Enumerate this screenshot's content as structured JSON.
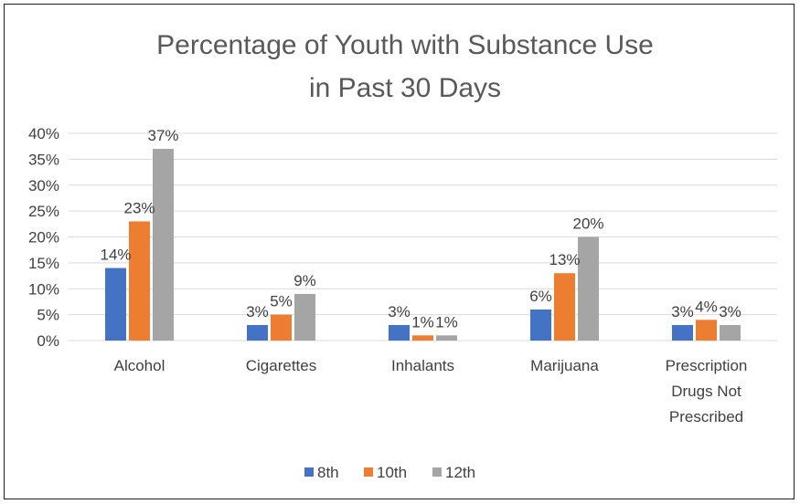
{
  "chart_data": {
    "type": "bar",
    "title_lines": [
      "Percentage of Youth with Substance Use",
      "in Past 30 Days"
    ],
    "categories": [
      [
        "Alcohol"
      ],
      [
        "Cigarettes"
      ],
      [
        "Inhalants"
      ],
      [
        "Marijuana"
      ],
      [
        "Prescription",
        "Drugs Not",
        "Prescribed"
      ]
    ],
    "series": [
      {
        "name": "8th",
        "color": "#4472c4",
        "values": [
          14,
          3,
          3,
          6,
          3
        ],
        "labels": [
          "14%",
          "3%",
          "3%",
          "6%",
          "3%"
        ]
      },
      {
        "name": "10th",
        "color": "#ed7d31",
        "values": [
          23,
          5,
          1,
          13,
          4
        ],
        "labels": [
          "23%",
          "5%",
          "1%",
          "13%",
          "4%"
        ]
      },
      {
        "name": "12th",
        "color": "#a5a5a5",
        "values": [
          37,
          9,
          1,
          20,
          3
        ],
        "labels": [
          "37%",
          "9%",
          "1%",
          "20%",
          "3%"
        ]
      }
    ],
    "y_ticks": [
      "0%",
      "5%",
      "10%",
      "15%",
      "20%",
      "25%",
      "30%",
      "35%",
      "40%"
    ],
    "ylim": [
      0,
      40
    ],
    "grid": true,
    "legend_position": "bottom"
  }
}
